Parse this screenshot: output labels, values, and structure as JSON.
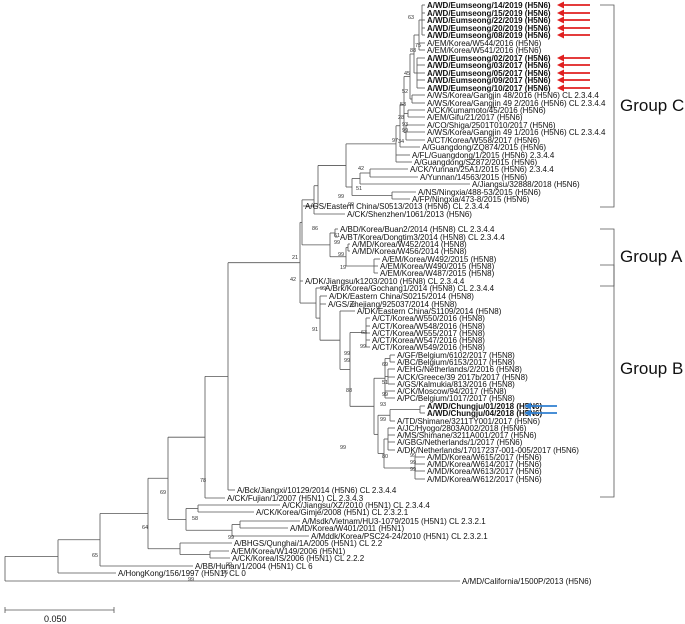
{
  "scale_label": "0.050",
  "groups": [
    "Group C",
    "Group A",
    "Group B"
  ],
  "colors": {
    "red_arrow": "#e02020",
    "blue_arrow": "#2f7fd0",
    "line": "#555555"
  },
  "leaves": [
    "A/WD/Eumseong/14/2019 (H5N6)",
    "A/WD/Eumseong/15/2019 (H5N6)",
    "A/WD/Eumseong/22/2019 (H5N6)",
    "A/WD/Eumseong/20/2019 (H5N6)",
    "A/WD/Eumseong/08/2019 (H5N6)",
    "A/EM/Korea/W544/2016 (H5N6)",
    "A/EM/Korea/W541/2016 (H5N6)",
    "A/WD/Eumseong/02/2017 (H5N6)",
    "A/WD/Eumseong/03/2017 (H5N6)",
    "A/WD/Eumseong/05/2017 (H5N6)",
    "A/WD/Eumseong/09/2017 (H5N6)",
    "A/WD/Eumseong/10/2017 (H5N6)",
    "A/WS/Korea/Gangjin 48/2016 (H5N6) CL 2.3.4.4",
    "A/WS/Korea/Gangjin 49 2/2016 (H5N6) CL 2.3.4.4",
    "A/CK/Kumamoto/45/2016 (H5N6)",
    "A/EM/Gifu/21/2017 (H5N6)",
    "A/CO/Shiga/2501T010/2017 (H5N6)",
    "A/WS/Korea/Gangjin 49 1/2016 (H5N6) CL 2.3.4.4",
    "A/CT/Korea/W558/2017 (H5N6)",
    "A/Guangdong/ZQ874/2015 (H5N6)",
    "A/FL/Guangdong/1/2015 (H5N6) 2.3.4.4",
    "A/Guangdong/SZ872/2015 (H5N6)",
    "A/CK/Yunnan/25A1/2015 (H5N6) 2.3.4.4",
    "A/Yunnan/14563/2015 (H5N6)",
    "A/Jiangsu/32888/2018 (H5N6)",
    "A/NS/Ningxia/488-53/2015 (H5N6)",
    "A/FP/Ningxia/473-8/2015 (H5N6)",
    "A/GS/Eastern China/S0513/2013 (H5N6) CL 2.3.4.4",
    "A/CK/Shenzhen/1061/2013 (H5N6)",
    "A/BD/Korea/Buan2/2014 (H5N8) CL 2.3.4.4",
    "A/BT/Korea/Dongtim3/2014 (H5N8) CL 2.3.4.4",
    "A/MD/Korea/W452/2014 (H5N8)",
    "A/MD/Korea/W456/2014 (H5N8)",
    "A/EM/Korea/W492/2015 (H5N8)",
    "A/EM/Korea/W490/2015 (H5N8)",
    "A/EM/Korea/W487/2015 (H5N8)",
    "A/DK/Jiangsu/k1203/2010 (H5N8) CL 2.3.4.4",
    "A/Brk/Korea/Gochang1/2014 (H5N8) CL 2.3.4.4",
    "A/DK/Eastern China/S0215/2014 (H5N8)",
    "A/GS/Zhejiang/925037/2014 (H5N8)",
    "A/DK/Eastern China/S1109/2014 (H5N8)",
    "A/CT/Korea/W550/2016 (H5N8)",
    "A/CT/Korea/W548/2016 (H5N8)",
    "A/CT/Korea/W555/2017 (H5N8)",
    "A/CT/Korea/W547/2016 (H5N8)",
    "A/CT/Korea/W549/2016 (H5N8)",
    "A/GF/Belgium/6102/2017 (H5N8)",
    "A/BC/Belgium/6153/2017 (H5N8)",
    "A/EHG/Netherlands/2/2016 (H5N8)",
    "A/CK/Greece/39 2017b/2017 (H5N8)",
    "A/GS/Kalmukia/813/2016 (H5N8)",
    "A/CK/Moscow/94/2017 (H5N8)",
    "A/PC/Belgium/1017/2017 (H5N8)",
    "A/WD/Chungju/01/2018 (H5N6)",
    "A/WD/Chungju/04/2018 (H5N6)",
    "A/TD/Shimane/3211TY001/2017 (H5N6)",
    "A/JC/Hyogo/2803A002/2018 (H5N6)",
    "A/MS/Shimane/3211A001/2017 (H5N6)",
    "A/GBG/Netherlands/1/2017 (H5N6)",
    "A/DK/Netherlands/17017237-001-005/2017 (H5N6)",
    "A/MD/Korea/W615/2017 (H5N6)",
    "A/MD/Korea/W614/2017 (H5N6)",
    "A/MD/Korea/W613/2017 (H5N6)",
    "A/MD/Korea/W612/2017 (H5N6)",
    "A/Bck/Jiangxi/10129/2014 (H5N6) CL 2.3.4.4",
    "A/CK/Fujian/1/2007 (H5N1) CL 2.3.4.3",
    "A/CK/Jiangsu/XZ/2010 (H5N1) CL 2.3.4.4",
    "A/CK/Korea/Gimje/2008 (H5N1) CL 2.3.2.1",
    "A/Msdk/Vietnam/HU3-1079/2015 (H5N1) CL 2.3.2.1",
    "A/MD/Korea/W401/2011 (H5N1)",
    "A/Mddk/Korea/PSC24-24/2010 (H5N1) CL 2.3.2.1",
    "A/BHGS/Qunghai/1A/2005 (H5N1) CL 2.2",
    "A/EM/Korea/W149/2006 (H5N1)",
    "A/CK/Korea/IS/2006 (H5N1) CL 2.2.2",
    "A/BB/Hunan/1/2004 (H5N1) CL 6",
    "A/HongKong/156/1997 (H5N1) CL 0",
    "A/MD/California/1500P/2013 (H5N6)"
  ],
  "bootstraps": [
    {
      "v": "63"
    },
    {
      "v": "75"
    },
    {
      "v": "88"
    },
    {
      "v": "45"
    },
    {
      "v": "52"
    },
    {
      "v": "53"
    },
    {
      "v": "28"
    },
    {
      "v": "93"
    },
    {
      "v": "99"
    },
    {
      "v": "34"
    },
    {
      "v": "97"
    },
    {
      "v": "42"
    },
    {
      "v": "51"
    },
    {
      "v": "99"
    },
    {
      "v": "99"
    },
    {
      "v": "86"
    },
    {
      "v": "61"
    },
    {
      "v": "99"
    },
    {
      "v": "99"
    },
    {
      "v": "19"
    },
    {
      "v": "21"
    },
    {
      "v": "42"
    },
    {
      "v": "99"
    },
    {
      "v": "91"
    },
    {
      "v": "99"
    },
    {
      "v": "63"
    },
    {
      "v": "99"
    },
    {
      "v": "99"
    },
    {
      "v": "99"
    },
    {
      "v": "69"
    },
    {
      "v": "51"
    },
    {
      "v": "99"
    },
    {
      "v": "88"
    },
    {
      "v": "93"
    },
    {
      "v": "99"
    },
    {
      "v": "80"
    },
    {
      "v": "99"
    },
    {
      "v": "99"
    },
    {
      "v": "99"
    },
    {
      "v": "99"
    },
    {
      "v": "78"
    },
    {
      "v": "58"
    },
    {
      "v": "69"
    },
    {
      "v": "64"
    },
    {
      "v": "99"
    },
    {
      "v": "65"
    },
    {
      "v": "96"
    },
    {
      "v": "99"
    },
    {
      "v": "99"
    }
  ]
}
